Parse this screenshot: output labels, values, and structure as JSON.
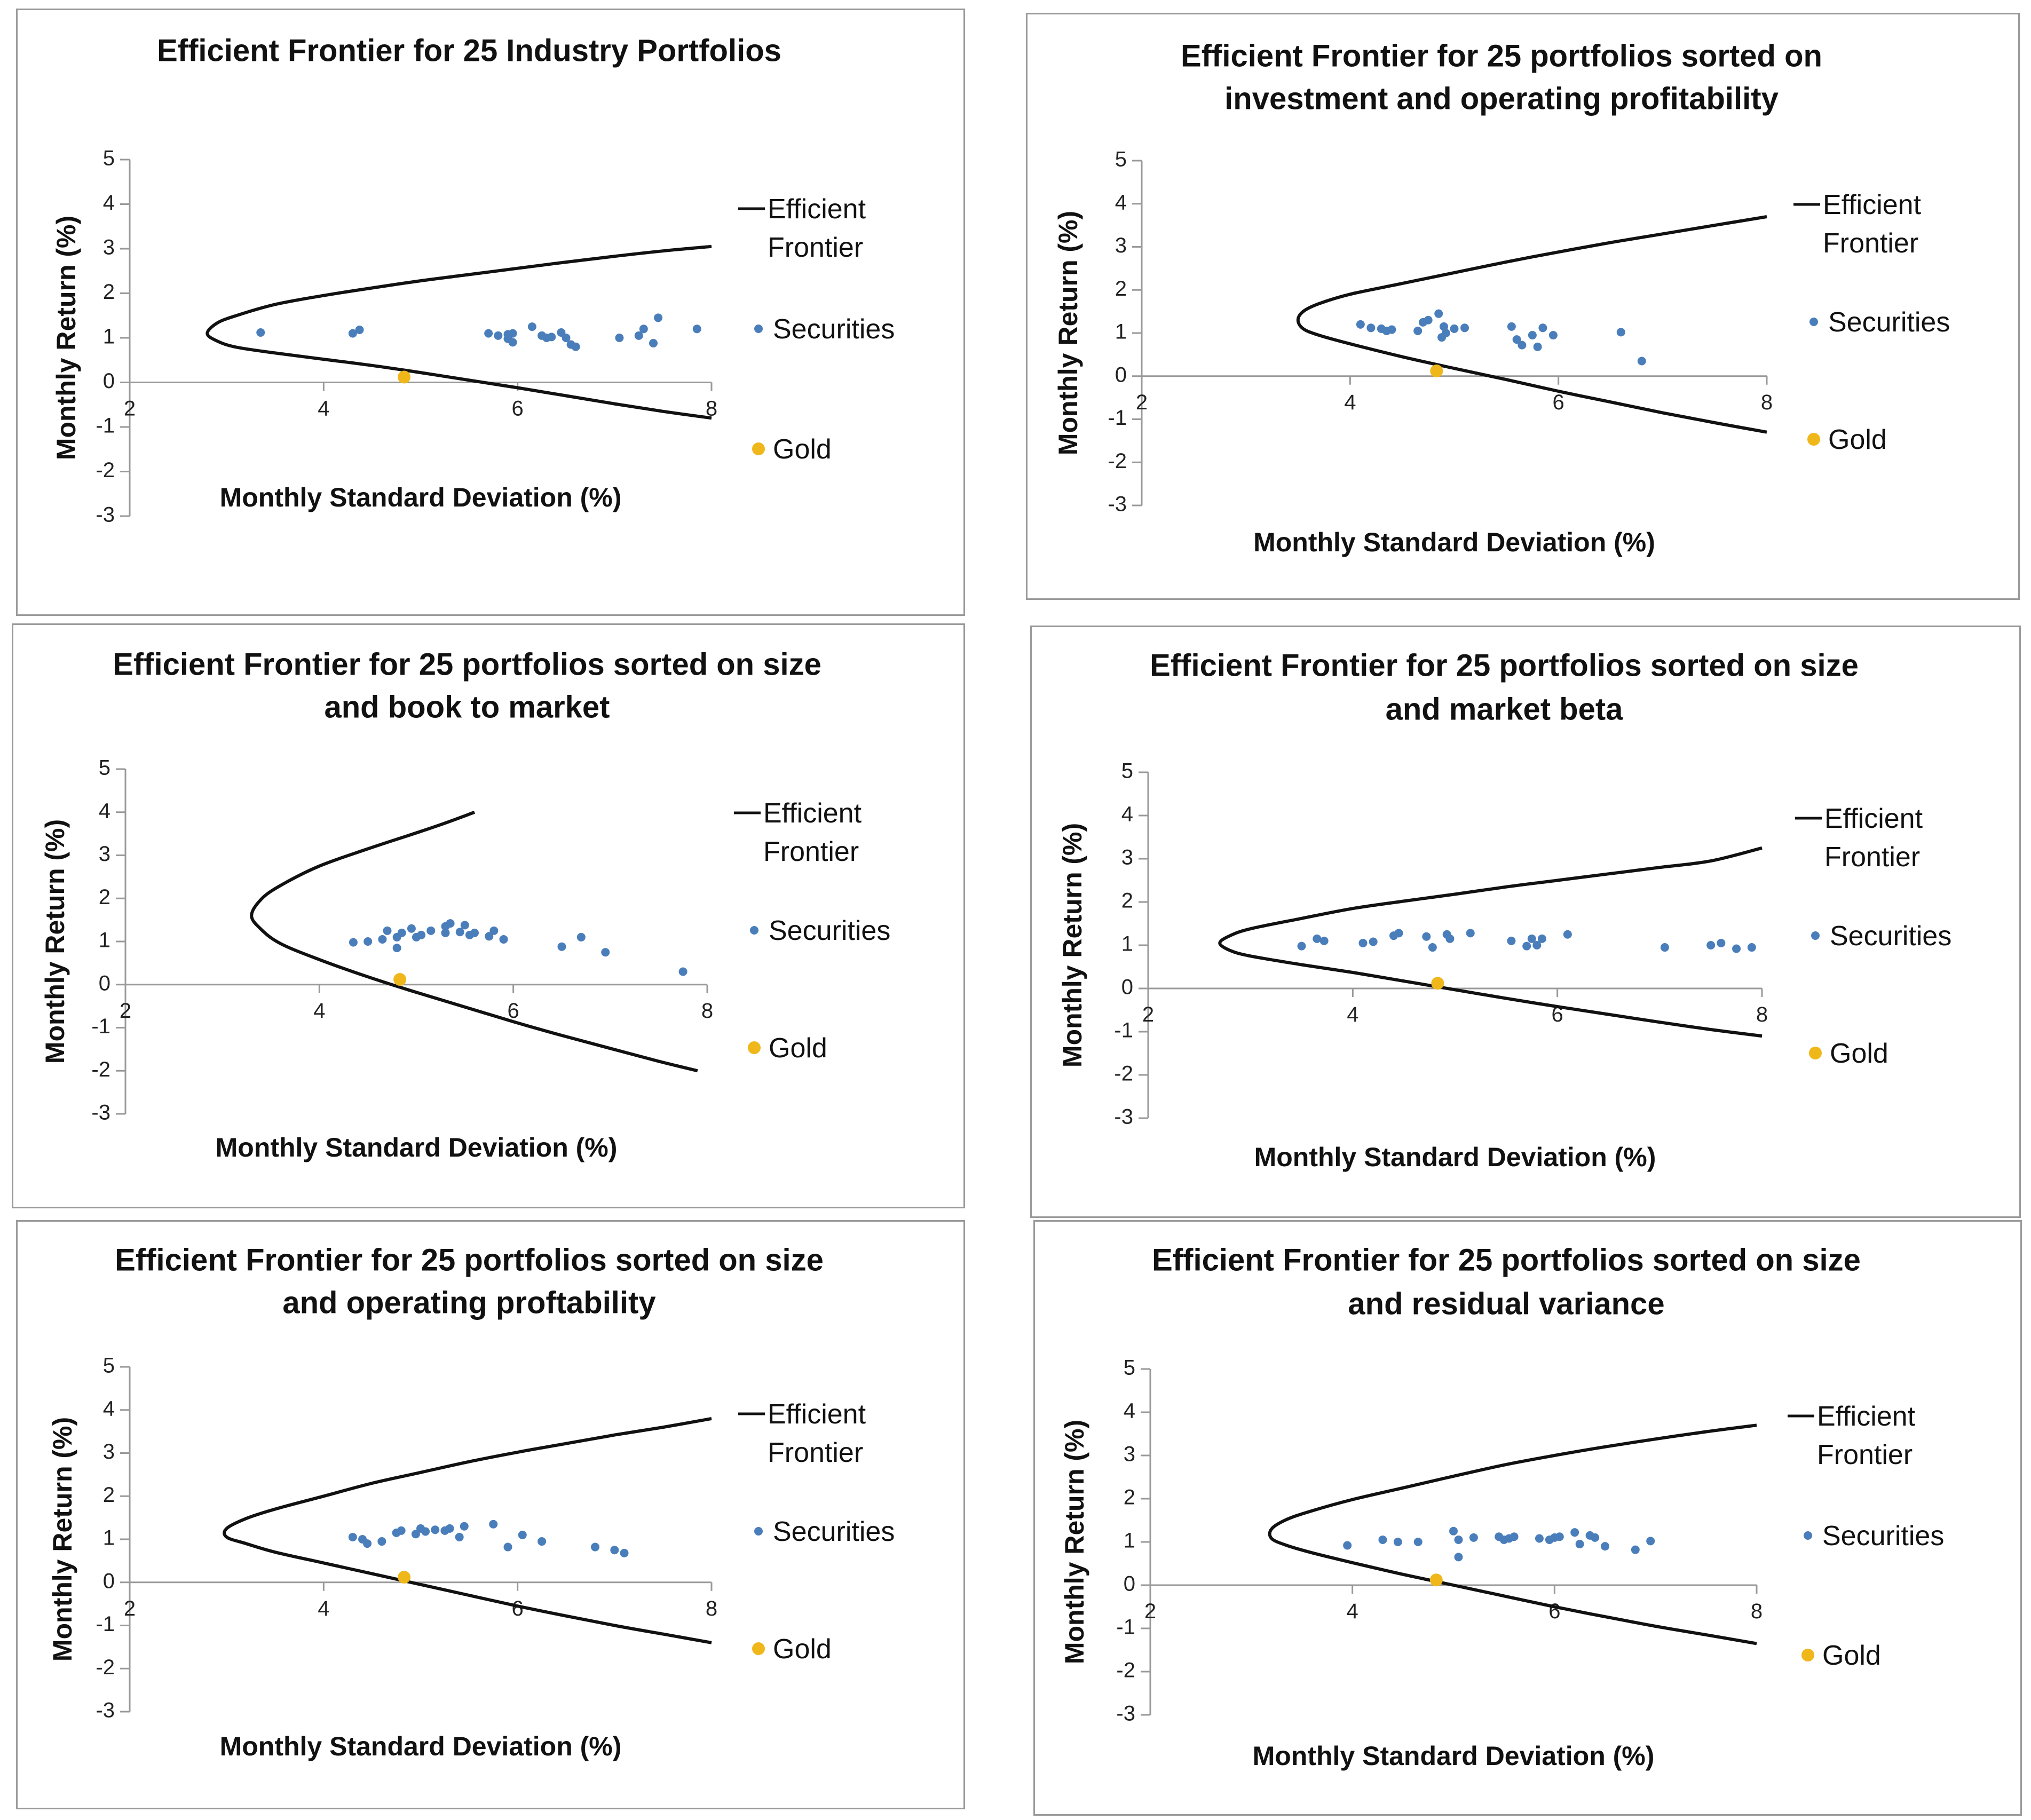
{
  "chart_data": [
    {
      "type": "scatter",
      "title": [
        "Efficient Frontier for 25 Industry Portfolios"
      ],
      "xlabel": "Monthly Standard Deviation (%)",
      "ylabel": "Monthly Return (%)",
      "xlim": [
        2,
        8
      ],
      "ylim": [
        -3,
        5
      ],
      "xticks": [
        "2",
        "4",
        "6",
        "8"
      ],
      "yticks": [
        "-3",
        "-2",
        "-1",
        "0",
        "1",
        "2",
        "3",
        "4",
        "5"
      ],
      "legend": [
        "Efficient Frontier",
        "Securities",
        "Gold"
      ],
      "colors": {
        "frontier": "#111111",
        "securities": "#4a7ebb",
        "gold": "#f0b71a"
      },
      "frontier": {
        "x": [
          8.0,
          7.5,
          7.0,
          6.5,
          6.0,
          5.5,
          5.0,
          4.5,
          4.0,
          3.5,
          3.1,
          2.9,
          2.8,
          2.9,
          3.1,
          3.5,
          4.0,
          4.5,
          5.0,
          5.5,
          6.0,
          6.5,
          7.0,
          7.5,
          8.0
        ],
        "y": [
          -0.8,
          -0.65,
          -0.48,
          -0.3,
          -0.12,
          0.05,
          0.22,
          0.38,
          0.52,
          0.66,
          0.79,
          0.93,
          1.1,
          1.33,
          1.5,
          1.75,
          1.95,
          2.12,
          2.28,
          2.42,
          2.56,
          2.7,
          2.83,
          2.95,
          3.05
        ]
      },
      "securities": {
        "x": [
          3.35,
          4.3,
          4.37,
          5.7,
          5.8,
          5.9,
          5.9,
          5.95,
          5.95,
          6.15,
          6.25,
          6.3,
          6.35,
          6.45,
          6.5,
          6.55,
          6.6,
          7.05,
          7.25,
          7.3,
          7.4,
          7.45,
          7.85
        ],
        "y": [
          1.12,
          1.1,
          1.18,
          1.1,
          1.05,
          1.08,
          0.98,
          0.9,
          1.1,
          1.25,
          1.05,
          1.0,
          1.02,
          1.12,
          1.0,
          0.85,
          0.8,
          1.0,
          1.05,
          1.2,
          0.88,
          1.45,
          1.2
        ]
      },
      "gold": {
        "x": 4.83,
        "y": 0.12
      }
    },
    {
      "type": "scatter",
      "title": [
        "Efficient Frontier for 25 portfolios sorted on",
        "investment and operating profitability"
      ],
      "xlabel": "Monthly Standard Deviation (%)",
      "ylabel": "Monthly Return (%)",
      "xlim": [
        2,
        8
      ],
      "ylim": [
        -3,
        5
      ],
      "xticks": [
        "2",
        "4",
        "6",
        "8"
      ],
      "yticks": [
        "-3",
        "-2",
        "-1",
        "0",
        "1",
        "2",
        "3",
        "4",
        "5"
      ],
      "legend": [
        "Efficient Frontier",
        "Securities",
        "Gold"
      ],
      "colors": {
        "frontier": "#111111",
        "securities": "#4a7ebb",
        "gold": "#f0b71a"
      },
      "frontier": {
        "x": [
          8.0,
          7.5,
          7.0,
          6.5,
          6.0,
          5.5,
          5.0,
          4.5,
          4.0,
          3.7,
          3.55,
          3.5,
          3.55,
          3.7,
          4.0,
          4.5,
          5.0,
          5.5,
          6.0,
          6.5,
          7.0,
          7.5,
          8.0
        ],
        "y": [
          -1.3,
          -1.08,
          -0.85,
          -0.6,
          -0.35,
          -0.08,
          0.18,
          0.45,
          0.75,
          0.95,
          1.1,
          1.3,
          1.5,
          1.68,
          1.9,
          2.15,
          2.4,
          2.65,
          2.88,
          3.1,
          3.3,
          3.5,
          3.7
        ]
      },
      "securities": {
        "x": [
          4.1,
          4.2,
          4.3,
          4.35,
          4.4,
          4.65,
          4.7,
          4.75,
          4.85,
          4.88,
          4.9,
          4.92,
          5.0,
          5.1,
          5.55,
          5.6,
          5.65,
          5.75,
          5.8,
          5.85,
          5.95,
          6.6,
          6.8
        ],
        "y": [
          1.2,
          1.12,
          1.1,
          1.05,
          1.08,
          1.05,
          1.25,
          1.3,
          1.45,
          0.9,
          1.15,
          1.0,
          1.1,
          1.12,
          1.15,
          0.85,
          0.72,
          0.95,
          0.68,
          1.12,
          0.95,
          1.02,
          0.35
        ]
      },
      "gold": {
        "x": 4.83,
        "y": 0.12
      }
    },
    {
      "type": "scatter",
      "title": [
        "Efficient Frontier for 25 portfolios sorted on size",
        "and book to market"
      ],
      "xlabel": "Monthly Standard Deviation (%)",
      "ylabel": "Monthly Return (%)",
      "xlim": [
        2,
        8
      ],
      "ylim": [
        -3,
        5
      ],
      "xticks": [
        "2",
        "4",
        "6",
        "8"
      ],
      "yticks": [
        "-3",
        "-2",
        "-1",
        "0",
        "1",
        "2",
        "3",
        "4",
        "5"
      ],
      "legend": [
        "Efficient Frontier",
        "Securities",
        "Gold"
      ],
      "colors": {
        "frontier": "#111111",
        "securities": "#4a7ebb",
        "gold": "#f0b71a"
      },
      "frontier": {
        "x": [
          7.9,
          7.5,
          7.0,
          6.5,
          6.0,
          5.5,
          5.0,
          4.5,
          4.0,
          3.6,
          3.4,
          3.3,
          3.4,
          3.6,
          4.0,
          4.5,
          5.0,
          5.3,
          5.6
        ],
        "y": [
          -2.0,
          -1.78,
          -1.48,
          -1.18,
          -0.86,
          -0.52,
          -0.18,
          0.18,
          0.58,
          0.95,
          1.28,
          1.6,
          1.98,
          2.3,
          2.75,
          3.15,
          3.52,
          3.75,
          4.0
        ]
      },
      "securities": {
        "x": [
          4.35,
          4.5,
          4.65,
          4.7,
          4.8,
          4.8,
          4.85,
          4.95,
          5.0,
          5.05,
          5.15,
          5.3,
          5.3,
          5.35,
          5.45,
          5.5,
          5.55,
          5.6,
          5.75,
          5.8,
          5.9,
          6.5,
          6.7,
          6.95,
          7.75
        ],
        "y": [
          0.98,
          1.0,
          1.05,
          1.25,
          1.1,
          0.85,
          1.2,
          1.3,
          1.1,
          1.15,
          1.25,
          1.35,
          1.2,
          1.42,
          1.22,
          1.38,
          1.15,
          1.2,
          1.12,
          1.25,
          1.05,
          0.88,
          1.1,
          0.75,
          0.3
        ]
      },
      "gold": {
        "x": 4.83,
        "y": 0.12
      }
    },
    {
      "type": "scatter",
      "title": [
        "Efficient Frontier for 25 portfolios sorted on size",
        "and market beta"
      ],
      "xlabel": "Monthly Standard Deviation (%)",
      "ylabel": "Monthly Return (%)",
      "xlim": [
        2,
        8
      ],
      "ylim": [
        -3,
        5
      ],
      "xticks": [
        "2",
        "4",
        "6",
        "8"
      ],
      "yticks": [
        "-3",
        "-2",
        "-1",
        "0",
        "1",
        "2",
        "3",
        "4",
        "5"
      ],
      "legend": [
        "Efficient Frontier",
        "Securities",
        "Gold"
      ],
      "colors": {
        "frontier": "#111111",
        "securities": "#4a7ebb",
        "gold": "#f0b71a"
      },
      "frontier": {
        "x": [
          8.0,
          7.5,
          7.0,
          6.5,
          6.0,
          5.5,
          5.0,
          4.5,
          4.0,
          3.5,
          3.0,
          2.8,
          2.7,
          2.8,
          3.0,
          3.5,
          4.0,
          4.5,
          5.0,
          5.5,
          6.0,
          6.5,
          7.0,
          7.5,
          8.0
        ],
        "y": [
          -1.1,
          -0.95,
          -0.78,
          -0.6,
          -0.42,
          -0.23,
          -0.03,
          0.17,
          0.37,
          0.55,
          0.75,
          0.88,
          1.05,
          1.22,
          1.38,
          1.62,
          1.85,
          2.02,
          2.18,
          2.35,
          2.5,
          2.65,
          2.8,
          2.95,
          3.25
        ]
      },
      "securities": {
        "x": [
          3.5,
          3.65,
          3.72,
          4.1,
          4.2,
          4.4,
          4.45,
          4.72,
          4.78,
          4.92,
          4.95,
          5.15,
          5.55,
          5.7,
          5.75,
          5.8,
          5.85,
          6.1,
          7.05,
          7.5,
          7.6,
          7.75,
          7.9
        ],
        "y": [
          0.98,
          1.15,
          1.1,
          1.05,
          1.08,
          1.22,
          1.28,
          1.2,
          0.95,
          1.25,
          1.15,
          1.28,
          1.1,
          0.98,
          1.15,
          1.0,
          1.15,
          1.25,
          0.95,
          1.0,
          1.05,
          0.92,
          0.95
        ]
      },
      "gold": {
        "x": 4.83,
        "y": 0.12
      }
    },
    {
      "type": "scatter",
      "title": [
        "Efficient Frontier for 25 portfolios sorted on size",
        "and operating proftability"
      ],
      "xlabel": "Monthly Standard Deviation (%)",
      "ylabel": "Monthly Return (%)",
      "xlim": [
        2,
        8
      ],
      "ylim": [
        -3,
        5
      ],
      "xticks": [
        "2",
        "4",
        "6",
        "8"
      ],
      "yticks": [
        "-3",
        "-2",
        "-1",
        "0",
        "1",
        "2",
        "3",
        "4",
        "5"
      ],
      "legend": [
        "Efficient Frontier",
        "Securities",
        "Gold"
      ],
      "colors": {
        "frontier": "#111111",
        "securities": "#4a7ebb",
        "gold": "#f0b71a"
      },
      "frontier": {
        "x": [
          8.0,
          7.5,
          7.0,
          6.5,
          6.0,
          5.5,
          5.0,
          4.5,
          4.0,
          3.5,
          3.2,
          3.0,
          3.0,
          3.2,
          3.5,
          4.0,
          4.5,
          5.0,
          5.5,
          6.0,
          6.5,
          7.0,
          7.5,
          8.0
        ],
        "y": [
          -1.4,
          -1.2,
          -1.0,
          -0.78,
          -0.55,
          -0.3,
          -0.05,
          0.2,
          0.45,
          0.7,
          0.9,
          1.05,
          1.25,
          1.48,
          1.7,
          2.0,
          2.3,
          2.55,
          2.8,
          3.02,
          3.22,
          3.42,
          3.6,
          3.8
        ]
      },
      "securities": {
        "x": [
          4.3,
          4.4,
          4.45,
          4.6,
          4.75,
          4.8,
          4.95,
          5.0,
          5.05,
          5.15,
          5.25,
          5.3,
          5.4,
          5.45,
          5.75,
          5.9,
          6.05,
          6.25,
          6.8,
          7.0,
          7.1
        ],
        "y": [
          1.05,
          1.0,
          0.9,
          0.95,
          1.15,
          1.2,
          1.12,
          1.25,
          1.18,
          1.22,
          1.2,
          1.25,
          1.05,
          1.3,
          1.35,
          0.82,
          1.1,
          0.95,
          0.82,
          0.75,
          0.68
        ]
      },
      "gold": {
        "x": 4.83,
        "y": 0.12
      }
    },
    {
      "type": "scatter",
      "title": [
        "Efficient Frontier for 25 portfolios sorted on size",
        "and residual variance"
      ],
      "xlabel": "Monthly Standard Deviation (%)",
      "ylabel": "Monthly Return (%)",
      "xlim": [
        2,
        8
      ],
      "ylim": [
        -3,
        5
      ],
      "xticks": [
        "2",
        "4",
        "6",
        "8"
      ],
      "yticks": [
        "-3",
        "-2",
        "-1",
        "0",
        "1",
        "2",
        "3",
        "4",
        "5"
      ],
      "legend": [
        "Efficient Frontier",
        "Securities",
        "Gold"
      ],
      "colors": {
        "frontier": "#111111",
        "securities": "#4a7ebb",
        "gold": "#f0b71a"
      },
      "frontier": {
        "x": [
          8.0,
          7.5,
          7.0,
          6.5,
          6.0,
          5.5,
          5.0,
          4.5,
          4.0,
          3.6,
          3.35,
          3.2,
          3.2,
          3.35,
          3.6,
          4.0,
          4.5,
          5.0,
          5.5,
          6.0,
          6.5,
          7.0,
          7.5,
          8.0
        ],
        "y": [
          -1.35,
          -1.15,
          -0.95,
          -0.73,
          -0.5,
          -0.25,
          0.0,
          0.25,
          0.52,
          0.75,
          0.92,
          1.08,
          1.3,
          1.52,
          1.72,
          1.98,
          2.25,
          2.52,
          2.78,
          3.0,
          3.2,
          3.38,
          3.55,
          3.7
        ]
      },
      "securities": {
        "x": [
          3.95,
          4.3,
          4.45,
          4.65,
          5.0,
          5.05,
          5.05,
          5.2,
          5.45,
          5.5,
          5.55,
          5.6,
          5.85,
          5.95,
          6.0,
          6.05,
          6.2,
          6.25,
          6.35,
          6.4,
          6.5,
          6.8,
          6.95
        ],
        "y": [
          0.92,
          1.05,
          1.0,
          1.0,
          1.25,
          0.65,
          1.05,
          1.1,
          1.12,
          1.05,
          1.08,
          1.12,
          1.08,
          1.05,
          1.1,
          1.12,
          1.22,
          0.95,
          1.15,
          1.1,
          0.9,
          0.82,
          1.02
        ]
      },
      "gold": {
        "x": 4.83,
        "y": 0.12
      }
    }
  ]
}
